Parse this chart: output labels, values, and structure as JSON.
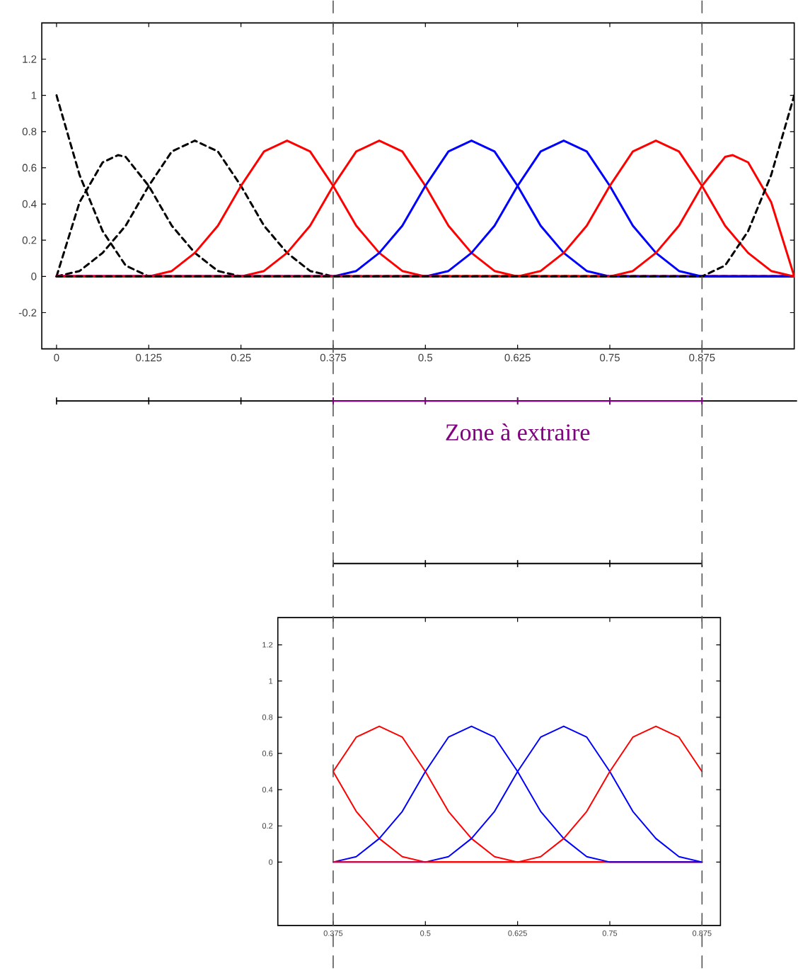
{
  "chart_data": [
    {
      "type": "line",
      "xlim": [
        -0.02,
        1
      ],
      "ylim": [
        -0.4,
        1.4
      ],
      "xticks": [
        0,
        0.125,
        0.25,
        0.375,
        0.5,
        0.625,
        0.75,
        0.875
      ],
      "yticks": [
        -0.2,
        0,
        0.2,
        0.4,
        0.6,
        0.8,
        1,
        1.2
      ],
      "ref_lines": [
        {
          "axis": "x",
          "value": 0.375,
          "color": "#555555",
          "line_style": "dashed"
        },
        {
          "axis": "x",
          "value": 0.875,
          "color": "#555555",
          "line_style": "dashed"
        }
      ],
      "annotations": [
        "Zone à extraire"
      ],
      "series": [
        {
          "color": "#000000",
          "line_style": "dashed",
          "x": [
            0,
            0.03125,
            0.0625,
            0.09375,
            0.125,
            1
          ],
          "values": [
            1,
            0.56,
            0.25,
            0.06,
            0,
            0
          ]
        },
        {
          "color": "#000000",
          "line_style": "dashed",
          "x": [
            0,
            0.03125,
            0.0625,
            0.08333,
            0.09375,
            0.125,
            0.15625,
            0.1875,
            0.21875,
            0.25,
            1
          ],
          "values": [
            0,
            0.41,
            0.63,
            0.67,
            0.66,
            0.5,
            0.28,
            0.13,
            0.03,
            0,
            0
          ]
        },
        {
          "color": "#000000",
          "line_style": "dashed",
          "x": [
            0,
            0.03125,
            0.0625,
            0.09375,
            0.125,
            0.15625,
            0.1875,
            0.21875,
            0.25,
            0.28125,
            0.3125,
            0.34375,
            0.375,
            1
          ],
          "values": [
            0,
            0.03,
            0.13,
            0.28,
            0.5,
            0.69,
            0.75,
            0.69,
            0.5,
            0.28,
            0.13,
            0.03,
            0,
            0
          ]
        },
        {
          "color": "#ff0000",
          "line_style": "solid",
          "x": [
            0,
            0.125,
            0.15625,
            0.1875,
            0.21875,
            0.25,
            0.28125,
            0.3125,
            0.34375,
            0.375,
            0.40625,
            0.4375,
            0.46875,
            0.5,
            1
          ],
          "values": [
            0,
            0,
            0.03,
            0.13,
            0.28,
            0.5,
            0.69,
            0.75,
            0.69,
            0.5,
            0.28,
            0.13,
            0.03,
            0,
            0
          ]
        },
        {
          "color": "#ff0000",
          "line_style": "solid",
          "x": [
            0,
            0.25,
            0.28125,
            0.3125,
            0.34375,
            0.375,
            0.40625,
            0.4375,
            0.46875,
            0.5,
            0.53125,
            0.5625,
            0.59375,
            0.625,
            1
          ],
          "values": [
            0,
            0,
            0.03,
            0.13,
            0.28,
            0.5,
            0.69,
            0.75,
            0.69,
            0.5,
            0.28,
            0.13,
            0.03,
            0,
            0
          ]
        },
        {
          "color": "#0000ff",
          "line_style": "solid",
          "x": [
            0,
            0.375,
            0.40625,
            0.4375,
            0.46875,
            0.5,
            0.53125,
            0.5625,
            0.59375,
            0.625,
            0.65625,
            0.6875,
            0.71875,
            0.75,
            1
          ],
          "values": [
            0,
            0,
            0.03,
            0.13,
            0.28,
            0.5,
            0.69,
            0.75,
            0.69,
            0.5,
            0.28,
            0.13,
            0.03,
            0,
            0
          ]
        },
        {
          "color": "#0000ff",
          "line_style": "solid",
          "x": [
            0,
            0.5,
            0.53125,
            0.5625,
            0.59375,
            0.625,
            0.65625,
            0.6875,
            0.71875,
            0.75,
            0.78125,
            0.8125,
            0.84375,
            0.875,
            1
          ],
          "values": [
            0,
            0,
            0.03,
            0.13,
            0.28,
            0.5,
            0.69,
            0.75,
            0.69,
            0.5,
            0.28,
            0.13,
            0.03,
            0,
            0
          ]
        },
        {
          "color": "#ff0000",
          "line_style": "solid",
          "x": [
            0,
            0.625,
            0.65625,
            0.6875,
            0.71875,
            0.75,
            0.78125,
            0.8125,
            0.84375,
            0.875,
            0.90625,
            0.9375,
            0.96875,
            1
          ],
          "values": [
            0,
            0,
            0.03,
            0.13,
            0.28,
            0.5,
            0.69,
            0.75,
            0.69,
            0.5,
            0.28,
            0.13,
            0.03,
            0
          ]
        },
        {
          "color": "#ff0000",
          "line_style": "solid",
          "x": [
            0,
            0.75,
            0.78125,
            0.8125,
            0.84375,
            0.875,
            0.90625,
            0.91667,
            0.9375,
            0.96875,
            1
          ],
          "values": [
            0,
            0,
            0.03,
            0.13,
            0.28,
            0.5,
            0.66,
            0.67,
            0.63,
            0.41,
            0
          ]
        },
        {
          "color": "#000000",
          "line_style": "dashed",
          "x": [
            0,
            0.875,
            0.90625,
            0.9375,
            0.96875,
            1
          ],
          "values": [
            0,
            0,
            0.06,
            0.25,
            0.56,
            1
          ]
        }
      ]
    },
    {
      "type": "line",
      "xlim": [
        0.3,
        0.9
      ],
      "ylim": [
        -0.35,
        1.35
      ],
      "xticks": [
        0.375,
        0.5,
        0.625,
        0.75,
        0.875
      ],
      "yticks": [
        0,
        0.2,
        0.4,
        0.6,
        0.8,
        1,
        1.2
      ],
      "series": [
        {
          "color": "#ff0000",
          "line_style": "solid",
          "x": [
            0.375,
            0.40625,
            0.4375,
            0.46875,
            0.5,
            0.875
          ],
          "values": [
            0.5,
            0.28,
            0.13,
            0.03,
            0,
            0
          ]
        },
        {
          "color": "#ff0000",
          "line_style": "solid",
          "x": [
            0.375,
            0.40625,
            0.4375,
            0.46875,
            0.5,
            0.53125,
            0.5625,
            0.59375,
            0.625,
            0.875
          ],
          "values": [
            0.5,
            0.69,
            0.75,
            0.69,
            0.5,
            0.28,
            0.13,
            0.03,
            0,
            0
          ]
        },
        {
          "color": "#0000ff",
          "line_style": "solid",
          "x": [
            0.375,
            0.40625,
            0.4375,
            0.46875,
            0.5,
            0.53125,
            0.5625,
            0.59375,
            0.625,
            0.65625,
            0.6875,
            0.71875,
            0.75,
            0.875
          ],
          "values": [
            0,
            0.03,
            0.13,
            0.28,
            0.5,
            0.69,
            0.75,
            0.69,
            0.5,
            0.28,
            0.13,
            0.03,
            0,
            0
          ]
        },
        {
          "color": "#0000ff",
          "line_style": "solid",
          "x": [
            0.375,
            0.5,
            0.53125,
            0.5625,
            0.59375,
            0.625,
            0.65625,
            0.6875,
            0.71875,
            0.75,
            0.78125,
            0.8125,
            0.84375,
            0.875
          ],
          "values": [
            0,
            0,
            0.03,
            0.13,
            0.28,
            0.5,
            0.69,
            0.75,
            0.69,
            0.5,
            0.28,
            0.13,
            0.03,
            0
          ]
        },
        {
          "color": "#ff0000",
          "line_style": "solid",
          "x": [
            0.375,
            0.625,
            0.65625,
            0.6875,
            0.71875,
            0.75,
            0.78125,
            0.8125,
            0.84375,
            0.875
          ],
          "values": [
            0,
            0,
            0.03,
            0.13,
            0.28,
            0.5,
            0.69,
            0.75,
            0.69,
            0.5
          ]
        }
      ]
    }
  ]
}
